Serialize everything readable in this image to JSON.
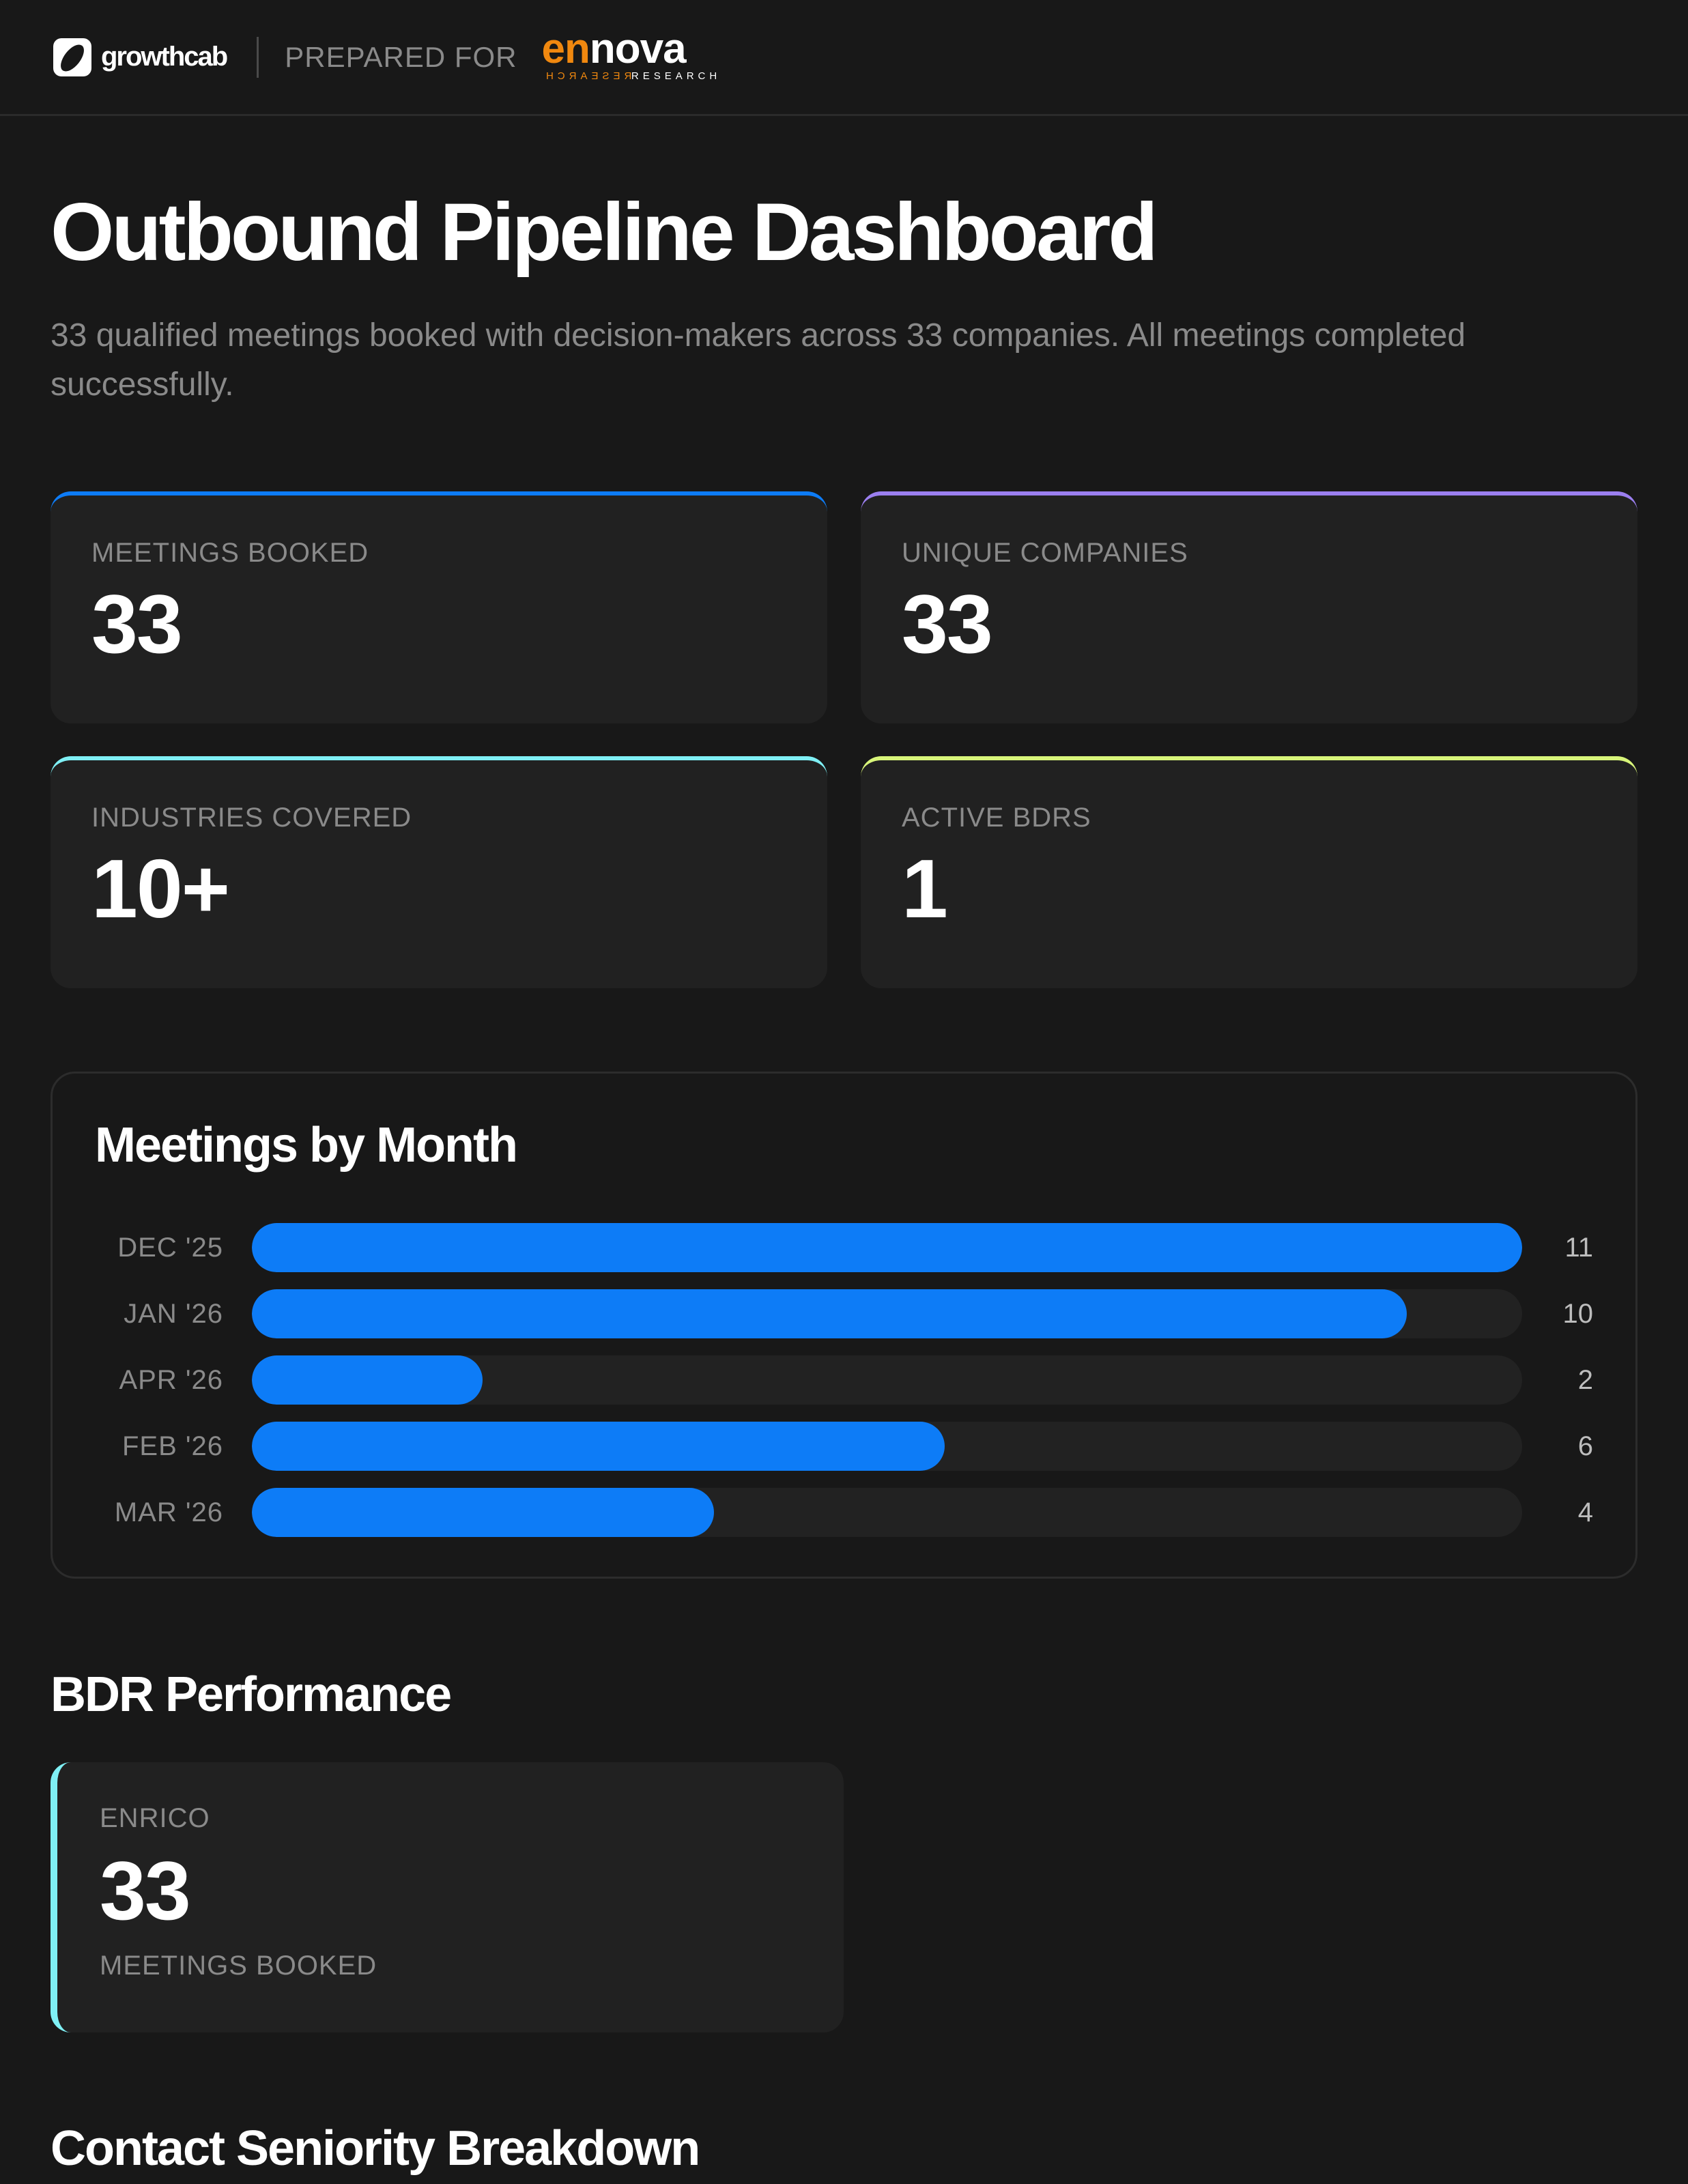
{
  "header": {
    "brand_name": "growthcab",
    "prepared_for": "PREPARED FOR",
    "client_logo": {
      "part1": "en",
      "part2": "nova",
      "sub_mirrored": "RESEARCH",
      "sub": "RESEARCH",
      "accent_color": "#f0880f"
    }
  },
  "page": {
    "title": "Outbound Pipeline Dashboard",
    "subtitle": "33 qualified meetings booked with decision-makers across 33 companies. All meetings completed successfully."
  },
  "stats": [
    {
      "label": "MEETINGS BOOKED",
      "value": "33",
      "accent": "#0d7cf7"
    },
    {
      "label": "UNIQUE COMPANIES",
      "value": "33",
      "accent": "#9b7ff0"
    },
    {
      "label": "INDUSTRIES COVERED",
      "value": "10+",
      "accent": "#7ff0f5"
    },
    {
      "label": "ACTIVE BDRS",
      "value": "1",
      "accent": "#d8f57a"
    }
  ],
  "chart_data": {
    "type": "bar",
    "orientation": "horizontal",
    "title": "Meetings by Month",
    "categories": [
      "DEC '25",
      "JAN '26",
      "APR '26",
      "FEB '26",
      "MAR '26"
    ],
    "values": [
      11,
      10,
      2,
      6,
      4
    ],
    "value_labels": [
      "11",
      "10",
      "2",
      "6",
      "4"
    ],
    "xlabel": "",
    "ylabel": "",
    "xlim": [
      0,
      11
    ],
    "grid": false,
    "bar_color": "#0d7cf7",
    "track_color": "#222222"
  },
  "bdr_section": {
    "heading": "BDR Performance",
    "cards": [
      {
        "name": "ENRICO",
        "value": "33",
        "caption": "MEETINGS BOOKED",
        "accent": "#7ff0f5"
      }
    ]
  },
  "seniority_section": {
    "heading": "Contact Seniority Breakdown"
  }
}
